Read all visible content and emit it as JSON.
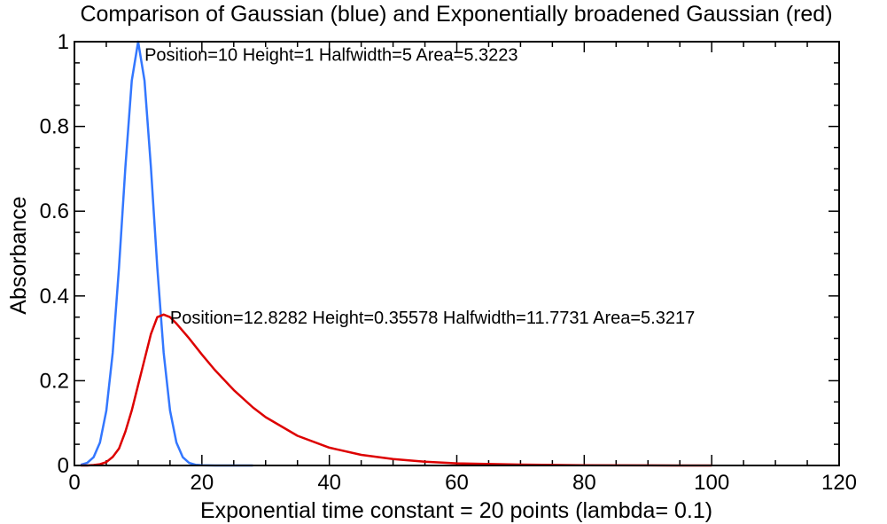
{
  "chart_data": {
    "type": "line",
    "title": "Comparison of Gaussian (blue) and Exponentially broadened Gaussian (red)",
    "xlabel": "Exponential time constant = 20 points  (lambda= 0.1)",
    "ylabel": "Absorbance",
    "xlim": [
      0,
      120
    ],
    "ylim": [
      0,
      1
    ],
    "xticks": [
      "0",
      "20",
      "40",
      "60",
      "80",
      "100",
      "120"
    ],
    "yticks": [
      "0",
      "0.2",
      "0.4",
      "0.6",
      "0.8",
      "1"
    ],
    "grid": false,
    "series": [
      {
        "color": "#3377ff",
        "x": [
          1,
          2,
          3,
          4,
          5,
          6,
          7,
          8,
          9,
          10,
          11,
          12,
          13,
          14,
          15,
          16,
          17,
          18,
          19,
          20,
          22,
          25,
          28
        ],
        "y": [
          0.0016,
          0.0061,
          0.0195,
          0.0541,
          0.1296,
          0.266,
          0.4676,
          0.704,
          0.908,
          1.0,
          0.908,
          0.704,
          0.4676,
          0.266,
          0.1296,
          0.0541,
          0.0195,
          0.0061,
          0.0016,
          0.0004,
          0.0,
          0.0,
          0.0
        ]
      },
      {
        "color": "#dd0000",
        "x": [
          1,
          2,
          3,
          4,
          5,
          6,
          7,
          8,
          9,
          10,
          11,
          12,
          13,
          14,
          15,
          16,
          18,
          20,
          22,
          25,
          28,
          30,
          35,
          40,
          45,
          50,
          55,
          60,
          70,
          80,
          90,
          100
        ],
        "y": [
          0.0,
          0.0,
          0.001,
          0.003,
          0.008,
          0.02,
          0.04,
          0.08,
          0.13,
          0.19,
          0.25,
          0.31,
          0.35,
          0.356,
          0.35,
          0.335,
          0.3,
          0.262,
          0.226,
          0.178,
          0.137,
          0.114,
          0.07,
          0.042,
          0.025,
          0.015,
          0.009,
          0.005,
          0.002,
          0.0007,
          0.0003,
          0.0001
        ]
      }
    ],
    "annotations": [
      {
        "text": "Position=10   Height=1   Halfwidth=5   Area=5.3223",
        "x": 11,
        "y": 0.955
      },
      {
        "text": "Position=12.8282   Height=0.35578   Halfwidth=11.7731   Area=5.3217",
        "x": 15,
        "y": 0.335
      }
    ]
  }
}
